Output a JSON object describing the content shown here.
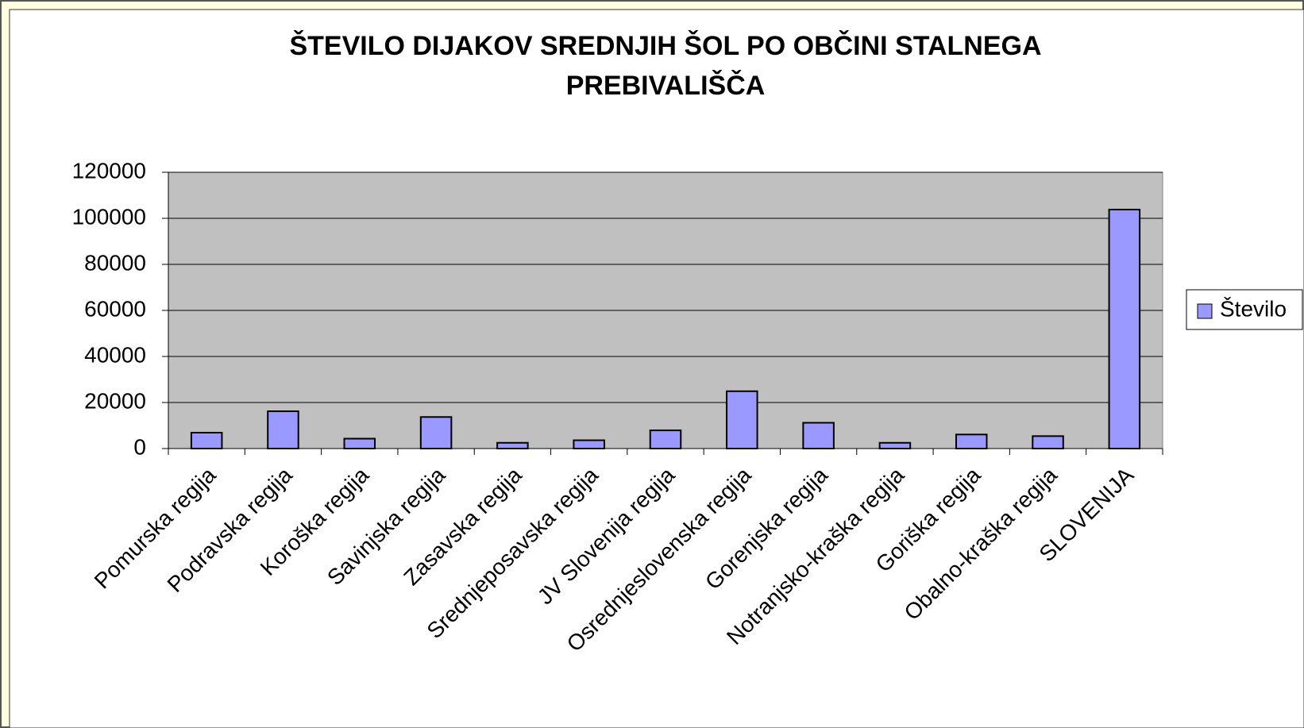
{
  "chart_data": {
    "type": "bar",
    "title": "ŠTEVILO DIJAKOV SREDNJIH ŠOL PO OBČINI STALNEGA PREBIVALIŠČA",
    "categories": [
      "Pomurska regija",
      "Podravska regija",
      "Koroška regija",
      "Savinjska regija",
      "Zasavska regija",
      "Srednjeposavska regija",
      "JV Slovenija regija",
      "Osrednjeslovenska regija",
      "Gorenjska regija",
      "Notranjsko-kraška regija",
      "Goriška regija",
      "Obalno-kraška regija",
      "SLOVENIJA"
    ],
    "series": [
      {
        "name": "Število",
        "color": "#9999ff",
        "values": [
          6900,
          16200,
          4300,
          13700,
          2500,
          3600,
          7900,
          24900,
          11200,
          2500,
          6100,
          5400,
          103800
        ]
      }
    ],
    "ylim": [
      0,
      120000
    ],
    "yticks": [
      0,
      20000,
      40000,
      60000,
      80000,
      100000,
      120000
    ],
    "grid": true,
    "legend": "right"
  }
}
